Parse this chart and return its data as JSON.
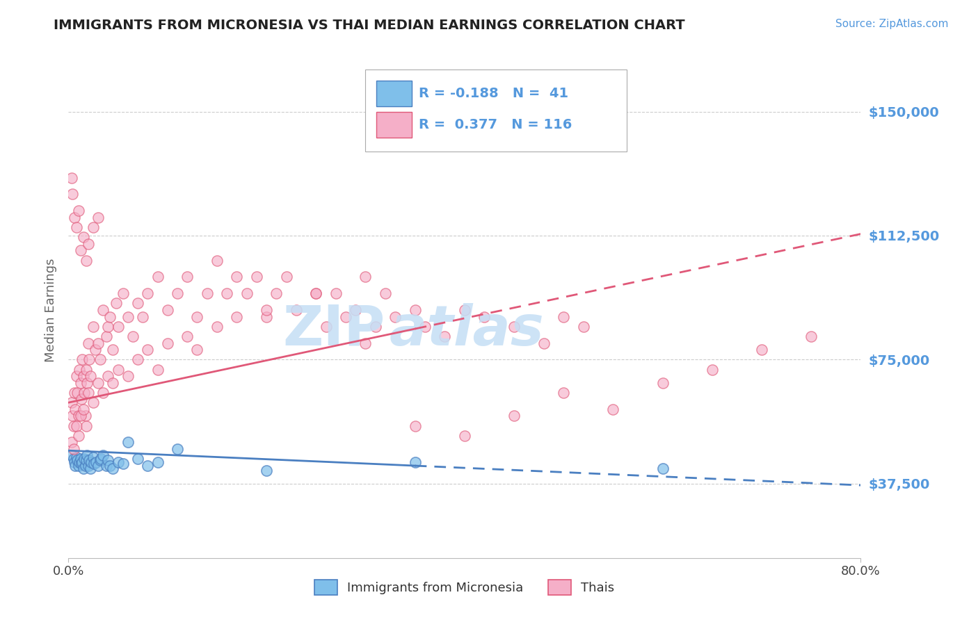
{
  "title": "IMMIGRANTS FROM MICRONESIA VS THAI MEDIAN EARNINGS CORRELATION CHART",
  "source_text": "Source: ZipAtlas.com",
  "ylabel": "Median Earnings",
  "xlim": [
    0.0,
    0.8
  ],
  "ylim": [
    15000,
    165000
  ],
  "ytick_values": [
    37500,
    75000,
    112500,
    150000
  ],
  "ytick_labels": [
    "$37,500",
    "$75,000",
    "$112,500",
    "$150,000"
  ],
  "legend_R1": "-0.188",
  "legend_N1": "41",
  "legend_R2": "0.377",
  "legend_N2": "116",
  "blue_scatter_color": "#7fbfea",
  "pink_scatter_color": "#f5afc8",
  "blue_line_color": "#4a7fc1",
  "pink_line_color": "#e05878",
  "title_color": "#222222",
  "axis_label_color": "#666666",
  "ytick_color": "#5599dd",
  "watermark_color": "#c5dff5",
  "background_color": "#ffffff",
  "grid_color": "#cccccc",
  "blue_trend_x0": 0.0,
  "blue_trend_x1": 0.8,
  "blue_trend_y0": 47500,
  "blue_trend_y1": 37000,
  "blue_trend_solid_end": 0.35,
  "pink_trend_x0": 0.0,
  "pink_trend_x1": 0.8,
  "pink_trend_y0": 62000,
  "pink_trend_y1": 113000,
  "pink_trend_solid_end": 0.35,
  "blue_scatter_x": [
    0.003,
    0.005,
    0.006,
    0.007,
    0.008,
    0.009,
    0.01,
    0.011,
    0.012,
    0.013,
    0.014,
    0.015,
    0.016,
    0.017,
    0.018,
    0.019,
    0.02,
    0.021,
    0.022,
    0.023,
    0.025,
    0.026,
    0.028,
    0.03,
    0.032,
    0.033,
    0.035,
    0.038,
    0.04,
    0.042,
    0.045,
    0.05,
    0.055,
    0.06,
    0.07,
    0.08,
    0.09,
    0.11,
    0.2,
    0.35,
    0.6
  ],
  "blue_scatter_y": [
    46000,
    45000,
    44000,
    43000,
    45500,
    44500,
    43000,
    44000,
    45000,
    43500,
    44000,
    42000,
    45000,
    43000,
    44500,
    46000,
    43000,
    44500,
    42000,
    44000,
    45500,
    43500,
    44000,
    43000,
    44500,
    45000,
    46000,
    43000,
    44500,
    43000,
    42000,
    44000,
    43500,
    50000,
    45000,
    43000,
    44000,
    48000,
    41500,
    44000,
    42000
  ],
  "pink_scatter_x": [
    0.003,
    0.004,
    0.005,
    0.006,
    0.007,
    0.008,
    0.009,
    0.01,
    0.011,
    0.012,
    0.013,
    0.014,
    0.015,
    0.016,
    0.017,
    0.018,
    0.019,
    0.02,
    0.021,
    0.022,
    0.025,
    0.027,
    0.03,
    0.032,
    0.035,
    0.038,
    0.04,
    0.042,
    0.045,
    0.048,
    0.05,
    0.055,
    0.06,
    0.065,
    0.07,
    0.075,
    0.08,
    0.09,
    0.1,
    0.11,
    0.12,
    0.13,
    0.14,
    0.15,
    0.16,
    0.17,
    0.18,
    0.19,
    0.2,
    0.21,
    0.22,
    0.23,
    0.25,
    0.26,
    0.27,
    0.28,
    0.29,
    0.3,
    0.31,
    0.32,
    0.33,
    0.35,
    0.36,
    0.38,
    0.4,
    0.42,
    0.45,
    0.48,
    0.5,
    0.52,
    0.003,
    0.005,
    0.008,
    0.01,
    0.012,
    0.015,
    0.018,
    0.02,
    0.025,
    0.03,
    0.035,
    0.04,
    0.045,
    0.05,
    0.06,
    0.07,
    0.08,
    0.09,
    0.1,
    0.12,
    0.13,
    0.15,
    0.17,
    0.2,
    0.25,
    0.3,
    0.003,
    0.004,
    0.006,
    0.008,
    0.01,
    0.012,
    0.015,
    0.018,
    0.02,
    0.025,
    0.03,
    0.35,
    0.4,
    0.45,
    0.5,
    0.55,
    0.6,
    0.65,
    0.7,
    0.75
  ],
  "pink_scatter_y": [
    62000,
    58000,
    55000,
    65000,
    60000,
    70000,
    65000,
    58000,
    72000,
    68000,
    63000,
    75000,
    70000,
    65000,
    58000,
    72000,
    68000,
    80000,
    75000,
    70000,
    85000,
    78000,
    80000,
    75000,
    90000,
    82000,
    85000,
    88000,
    78000,
    92000,
    85000,
    95000,
    88000,
    82000,
    92000,
    88000,
    95000,
    100000,
    90000,
    95000,
    100000,
    88000,
    95000,
    105000,
    95000,
    100000,
    95000,
    100000,
    88000,
    95000,
    100000,
    90000,
    95000,
    85000,
    95000,
    88000,
    90000,
    80000,
    85000,
    95000,
    88000,
    90000,
    85000,
    82000,
    90000,
    88000,
    85000,
    80000,
    88000,
    85000,
    50000,
    48000,
    55000,
    52000,
    58000,
    60000,
    55000,
    65000,
    62000,
    68000,
    65000,
    70000,
    68000,
    72000,
    70000,
    75000,
    78000,
    72000,
    80000,
    82000,
    78000,
    85000,
    88000,
    90000,
    95000,
    100000,
    130000,
    125000,
    118000,
    115000,
    120000,
    108000,
    112000,
    105000,
    110000,
    115000,
    118000,
    55000,
    52000,
    58000,
    65000,
    60000,
    68000,
    72000,
    78000,
    82000
  ]
}
